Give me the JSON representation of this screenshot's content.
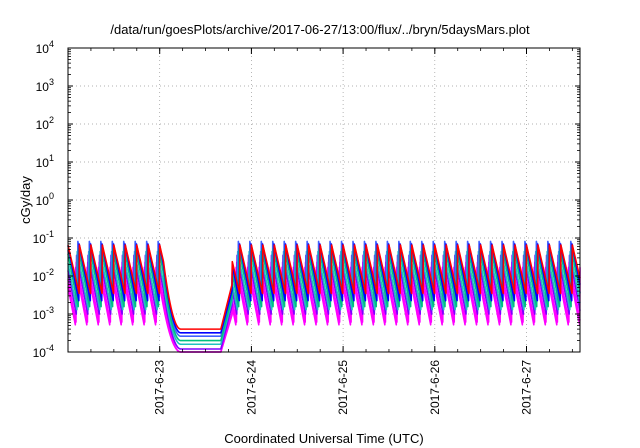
{
  "chart_data": {
    "type": "line",
    "title": "/data/run/goesPlots/archive/2017-06-27/13:00/flux/../bryn/5daysMars.plot",
    "xlabel": "Coordinated Universal Time (UTC)",
    "ylabel": "cGy/day",
    "y_scale": "log",
    "ylim": [
      0.0001,
      10000
    ],
    "y_ticks": [
      {
        "base": "10",
        "exp": "-4"
      },
      {
        "base": "10",
        "exp": "-3"
      },
      {
        "base": "10",
        "exp": "-2"
      },
      {
        "base": "10",
        "exp": "-1"
      },
      {
        "base": "10",
        "exp": "0"
      },
      {
        "base": "10",
        "exp": "1"
      },
      {
        "base": "10",
        "exp": "2"
      },
      {
        "base": "10",
        "exp": "3"
      },
      {
        "base": "10",
        "exp": "4"
      }
    ],
    "xlim": [
      "2017-06-22T00:00",
      "2017-06-27T14:00"
    ],
    "x_ticks": [
      "2017-6-23",
      "2017-6-24",
      "2017-6-25",
      "2017-6-26",
      "2017-6-27"
    ],
    "grid": true,
    "gap": {
      "decline_start": "2017-06-23T01:00",
      "decline_end": "2017-06-23T05:30",
      "floor_end": "2017-06-23T16:00",
      "recover": "2017-06-23T19:00"
    },
    "pattern": {
      "period_hours": 3,
      "colors": [
        {
          "color": "#ff0000",
          "peak": 0.065,
          "trough": 0.0032,
          "floor": 0.0004
        },
        {
          "color": "#0000ff",
          "peak": 0.075,
          "trough": 0.0022,
          "floor": 0.00032
        },
        {
          "color": "#00c080",
          "peak": 0.055,
          "trough": 0.0015,
          "floor": 0.0002
        },
        {
          "color": "#4060ff",
          "peak": 0.085,
          "trough": 0.0018,
          "floor": 0.00026
        },
        {
          "color": "#20c0c0",
          "peak": 0.045,
          "trough": 0.0012,
          "floor": 0.00016
        },
        {
          "color": "#8000ff",
          "peak": 0.035,
          "trough": 0.0009,
          "floor": 0.00012
        },
        {
          "color": "#ff00ff",
          "peak": 0.025,
          "trough": 0.0006,
          "floor": 0.0001
        },
        {
          "color": "#ff00ff",
          "peak": 0.018,
          "trough": 0.0005,
          "floor": 0.0001
        }
      ]
    }
  }
}
